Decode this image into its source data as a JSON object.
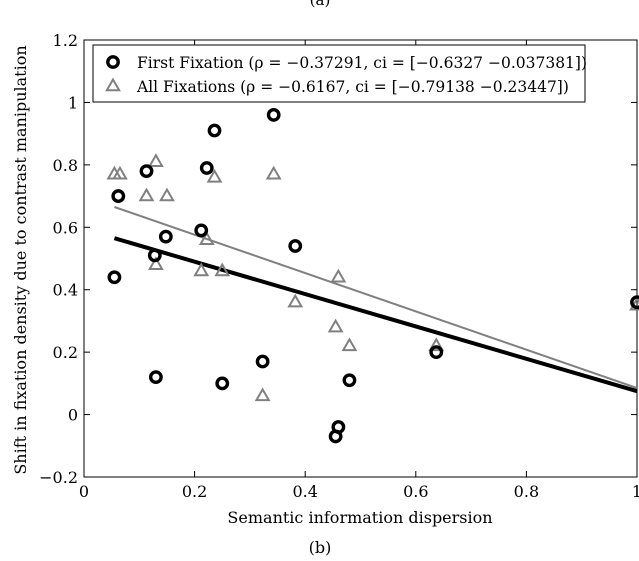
{
  "top_caption": "(a)",
  "bottom_caption": "(b)",
  "chart_data": {
    "type": "scatter",
    "xlabel": "Semantic information dispersion",
    "ylabel": "Shift in fixation density due to contrast manipulation",
    "xlim": [
      0,
      1
    ],
    "ylim": [
      -0.2,
      1.2
    ],
    "xticks": [
      0,
      0.2,
      0.4,
      0.6,
      0.8,
      1
    ],
    "xtick_labels": [
      "0",
      "0.2",
      "0.4",
      "0.6",
      "0.8",
      "1"
    ],
    "yticks": [
      -0.2,
      0,
      0.2,
      0.4,
      0.6,
      0.8,
      1,
      1.2
    ],
    "ytick_labels": [
      "−0.2",
      "0",
      "0.2",
      "0.4",
      "0.6",
      "0.8",
      "1",
      "1.2"
    ],
    "grid": false,
    "legend_position": "top-left",
    "series": [
      {
        "name": "First Fixation (ρ = −0.37291, ci = [−0.6327 −0.037381])",
        "marker": "circle",
        "color": "#000000",
        "points": [
          {
            "x": 0.055,
            "y": 0.44
          },
          {
            "x": 0.062,
            "y": 0.7
          },
          {
            "x": 0.113,
            "y": 0.78
          },
          {
            "x": 0.128,
            "y": 0.51
          },
          {
            "x": 0.13,
            "y": 0.12
          },
          {
            "x": 0.148,
            "y": 0.57
          },
          {
            "x": 0.212,
            "y": 0.59
          },
          {
            "x": 0.222,
            "y": 0.79
          },
          {
            "x": 0.236,
            "y": 0.91
          },
          {
            "x": 0.25,
            "y": 0.1
          },
          {
            "x": 0.323,
            "y": 0.17
          },
          {
            "x": 0.343,
            "y": 0.96
          },
          {
            "x": 0.382,
            "y": 0.54
          },
          {
            "x": 0.455,
            "y": -0.07
          },
          {
            "x": 0.46,
            "y": -0.04
          },
          {
            "x": 0.48,
            "y": 0.11
          },
          {
            "x": 0.637,
            "y": 0.2
          },
          {
            "x": 1.0,
            "y": 0.36
          }
        ],
        "fit": {
          "x": [
            0.055,
            1.0
          ],
          "y": [
            0.565,
            0.075
          ]
        }
      },
      {
        "name": "All Fixations (ρ = −0.6167, ci = [−0.79138 −0.23447])",
        "marker": "triangle",
        "color": "#808080",
        "points": [
          {
            "x": 0.055,
            "y": 0.77
          },
          {
            "x": 0.065,
            "y": 0.77
          },
          {
            "x": 0.113,
            "y": 0.7
          },
          {
            "x": 0.13,
            "y": 0.81
          },
          {
            "x": 0.13,
            "y": 0.48
          },
          {
            "x": 0.15,
            "y": 0.7
          },
          {
            "x": 0.212,
            "y": 0.46
          },
          {
            "x": 0.222,
            "y": 0.56
          },
          {
            "x": 0.236,
            "y": 0.76
          },
          {
            "x": 0.25,
            "y": 0.46
          },
          {
            "x": 0.323,
            "y": 0.06
          },
          {
            "x": 0.343,
            "y": 0.77
          },
          {
            "x": 0.382,
            "y": 0.36
          },
          {
            "x": 0.455,
            "y": 0.28
          },
          {
            "x": 0.46,
            "y": 0.44
          },
          {
            "x": 0.48,
            "y": 0.22
          },
          {
            "x": 0.637,
            "y": 0.22
          },
          {
            "x": 1.0,
            "y": 0.35
          }
        ],
        "fit": {
          "x": [
            0.055,
            1.0
          ],
          "y": [
            0.665,
            0.085
          ]
        }
      }
    ]
  }
}
